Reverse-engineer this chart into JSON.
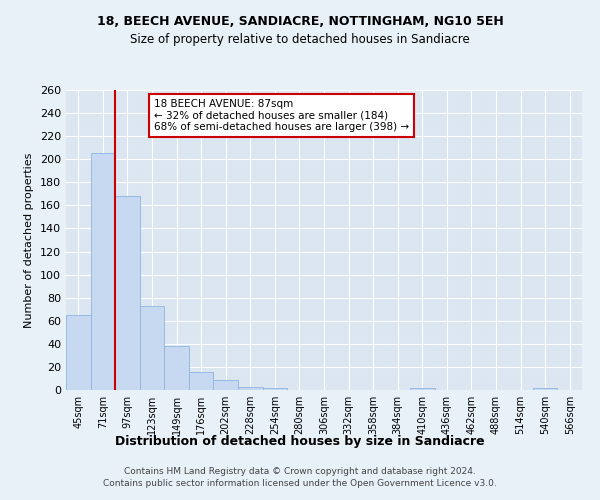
{
  "title": "18, BEECH AVENUE, SANDIACRE, NOTTINGHAM, NG10 5EH",
  "subtitle": "Size of property relative to detached houses in Sandiacre",
  "xlabel": "Distribution of detached houses by size in Sandiacre",
  "ylabel": "Number of detached properties",
  "bin_labels": [
    "45sqm",
    "71sqm",
    "97sqm",
    "123sqm",
    "149sqm",
    "176sqm",
    "202sqm",
    "228sqm",
    "254sqm",
    "280sqm",
    "306sqm",
    "332sqm",
    "358sqm",
    "384sqm",
    "410sqm",
    "436sqm",
    "462sqm",
    "488sqm",
    "514sqm",
    "540sqm",
    "566sqm"
  ],
  "bar_heights": [
    65,
    205,
    168,
    73,
    38,
    16,
    9,
    3,
    2,
    0,
    0,
    0,
    0,
    0,
    2,
    0,
    0,
    0,
    0,
    2,
    0
  ],
  "bar_color": "#c6d9f0",
  "bar_edgecolor": "#8db4e2",
  "property_line_x": 1.5,
  "annotation_title": "18 BEECH AVENUE: 87sqm",
  "annotation_line1": "← 32% of detached houses are smaller (184)",
  "annotation_line2": "68% of semi-detached houses are larger (398) →",
  "annotation_box_color": "#ffffff",
  "annotation_box_edgecolor": "#cc0000",
  "vline_color": "#cc0000",
  "plot_bg_color": "#dce6f1",
  "fig_bg_color": "#e8f0f8",
  "footer1": "Contains HM Land Registry data © Crown copyright and database right 2024.",
  "footer2": "Contains public sector information licensed under the Open Government Licence v3.0.",
  "ylim": [
    0,
    260
  ],
  "yticks": [
    0,
    20,
    40,
    60,
    80,
    100,
    120,
    140,
    160,
    180,
    200,
    220,
    240,
    260
  ]
}
